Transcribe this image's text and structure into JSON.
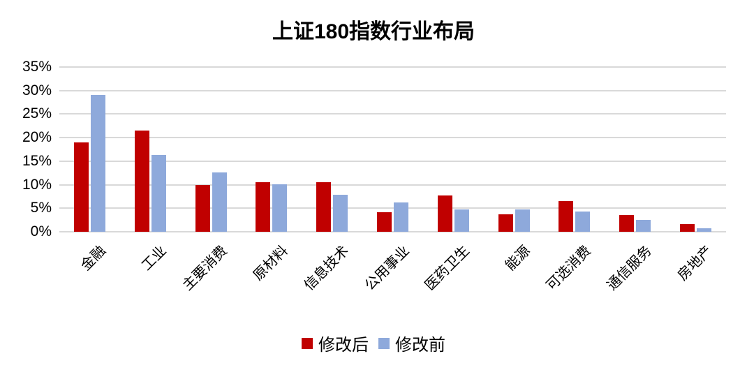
{
  "chart_data": {
    "type": "bar",
    "title": "上证180指数行业布局",
    "categories": [
      "金融",
      "工业",
      "主要消费",
      "原材料",
      "信息技术",
      "公用事业",
      "医药卫生",
      "能源",
      "可选消费",
      "通信服务",
      "房地产"
    ],
    "series": [
      {
        "name": "修改后",
        "color": "#c00000",
        "values": [
          19.0,
          21.5,
          10.0,
          10.6,
          10.6,
          4.2,
          7.7,
          3.7,
          6.5,
          3.6,
          1.7
        ]
      },
      {
        "name": "修改前",
        "color": "#8ea9db",
        "values": [
          29.0,
          16.3,
          12.6,
          10.1,
          7.9,
          6.2,
          4.8,
          4.8,
          4.3,
          2.5,
          0.7
        ]
      }
    ],
    "xlabel": "",
    "ylabel": "",
    "y_ticks": [
      "35%",
      "30%",
      "25%",
      "20%",
      "15%",
      "10%",
      "5%",
      "0%"
    ],
    "ylim": [
      0,
      35
    ],
    "grid": true,
    "legend_position": "bottom",
    "colors": {
      "gridline": "#d9d9d9",
      "text": "#000000",
      "background": "#ffffff"
    }
  }
}
